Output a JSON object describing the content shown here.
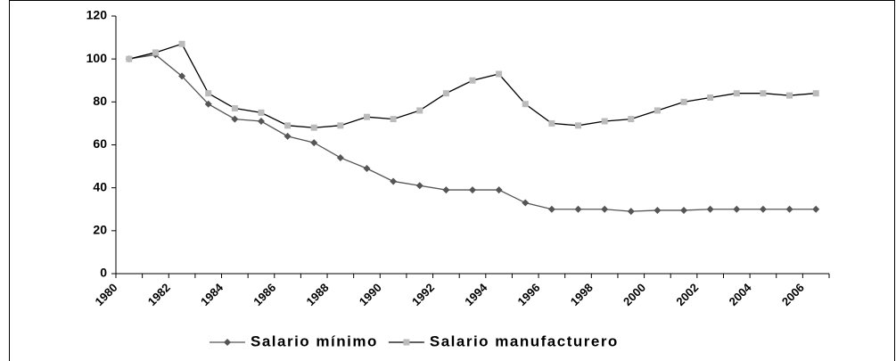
{
  "chart_data": {
    "type": "line",
    "categories": [
      "1980",
      null,
      "1982",
      null,
      "1984",
      null,
      "1986",
      null,
      "1988",
      null,
      "1990",
      null,
      "1992",
      null,
      "1994",
      null,
      "1996",
      null,
      "1998",
      null,
      "2000",
      null,
      "2002",
      null,
      "2004",
      null,
      "2006"
    ],
    "series": [
      {
        "name": "Salario mínimo",
        "color": "#555555",
        "marker": "diamond",
        "values": [
          100,
          102,
          92,
          79,
          72,
          71,
          64,
          61,
          54,
          49,
          43,
          41,
          39,
          39,
          39,
          33,
          30,
          30,
          30,
          29,
          29.5,
          29.5,
          30,
          30,
          30,
          30,
          30
        ]
      },
      {
        "name": "Salario manufacturero",
        "color": "#000000",
        "marker": "square",
        "marker_color": "#bbbbbb",
        "values": [
          100,
          103,
          107,
          84,
          77,
          75,
          69,
          68,
          69,
          73,
          72,
          76,
          84,
          90,
          93,
          79,
          70,
          69,
          71,
          72,
          76,
          80,
          82,
          84,
          84,
          83,
          84
        ]
      }
    ],
    "ylim": [
      0,
      120
    ],
    "yticks": [
      0,
      20,
      40,
      60,
      80,
      100,
      120
    ],
    "grid": false,
    "legend": "bottom"
  }
}
